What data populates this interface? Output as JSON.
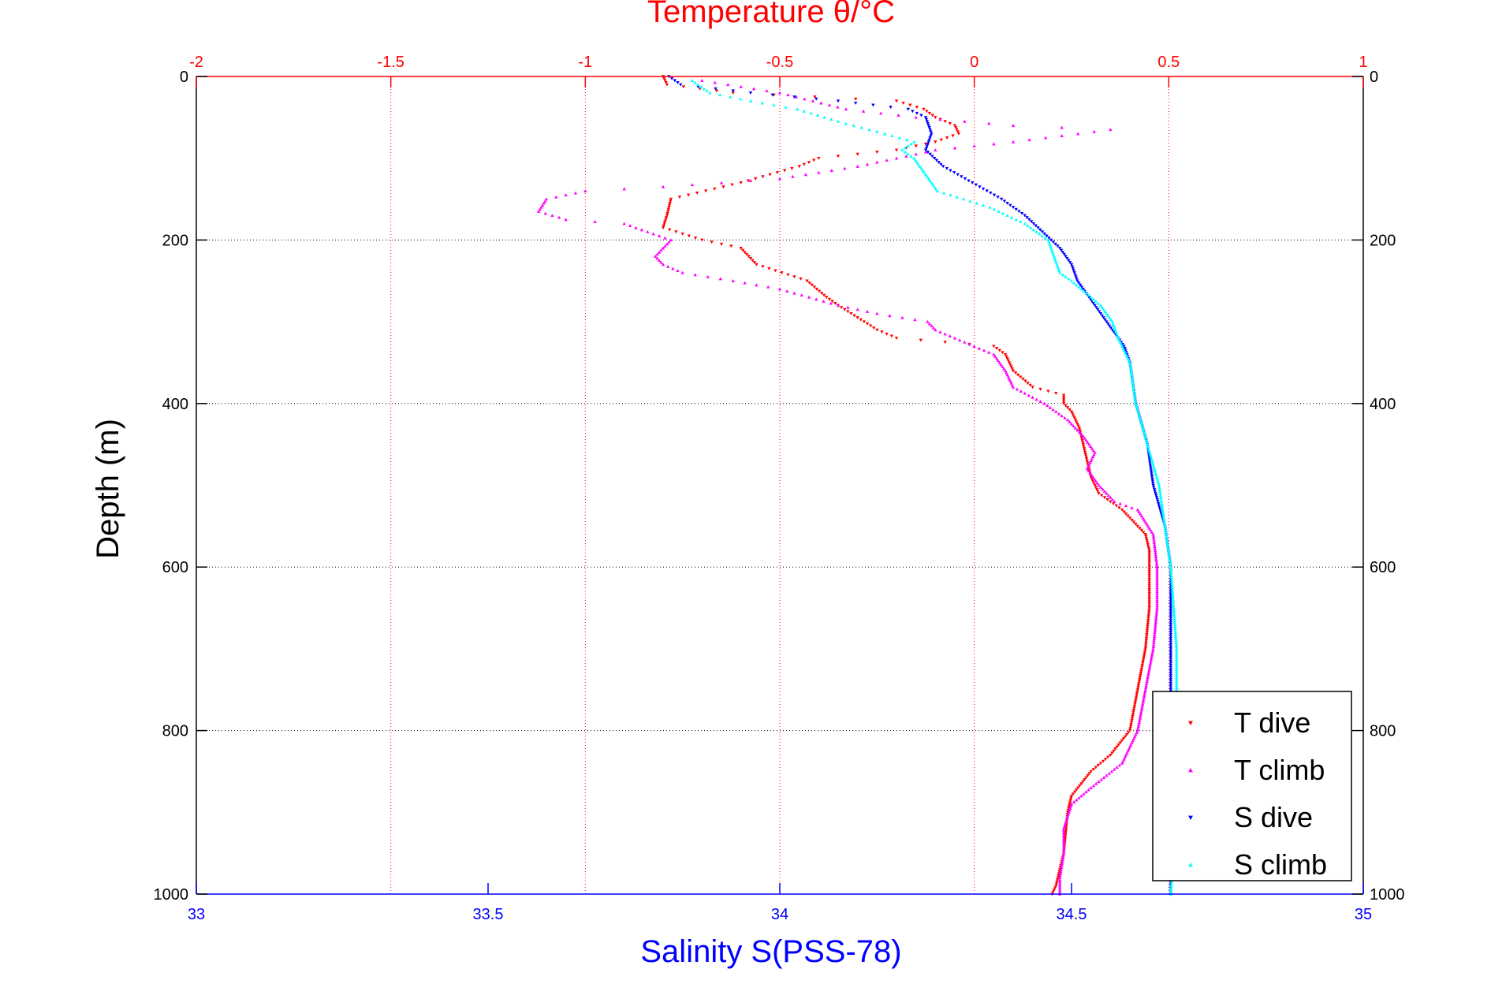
{
  "chart_data": {
    "type": "scatter",
    "title_top": "Temperature θ/°C",
    "xlabel_bottom": "Salinity S(PSS-78)",
    "ylabel": "Depth (m)",
    "x_top": {
      "label": "Temperature θ/°C",
      "lim": [
        -2,
        1
      ],
      "ticks": [
        -2,
        -1.5,
        -1,
        -0.5,
        0,
        0.5,
        1
      ],
      "tick_labels": [
        "-2",
        "-1.5",
        "-1",
        "-0.5",
        "0",
        "0.5",
        "1"
      ],
      "color": "#ff0000"
    },
    "x_bottom": {
      "label": "Salinity S(PSS-78)",
      "lim": [
        33,
        35
      ],
      "ticks": [
        33,
        33.5,
        34,
        34.5,
        35
      ],
      "tick_labels": [
        "33",
        "33.5",
        "34",
        "34.5",
        "35"
      ],
      "color": "#0000ff"
    },
    "y": {
      "label": "Depth (m)",
      "lim": [
        0,
        1000
      ],
      "reversed": true,
      "ticks": [
        0,
        200,
        400,
        600,
        800,
        1000
      ],
      "tick_labels": [
        "0",
        "200",
        "400",
        "600",
        "800",
        "1000"
      ]
    },
    "grid": true,
    "legend_position": "bottom-right",
    "series": [
      {
        "name": "T dive",
        "axis": "top",
        "color": "#ff0000",
        "marker": "triangle-down",
        "points": [
          [
            -0.8,
            0
          ],
          [
            -0.79,
            10
          ],
          [
            -0.62,
            20
          ],
          [
            -0.2,
            30
          ],
          [
            -0.13,
            40
          ],
          [
            -0.1,
            50
          ],
          [
            -0.05,
            60
          ],
          [
            -0.04,
            70
          ],
          [
            -0.1,
            80
          ],
          [
            -0.2,
            90
          ],
          [
            -0.4,
            100
          ],
          [
            -0.45,
            110
          ],
          [
            -0.6,
            130
          ],
          [
            -0.78,
            150
          ],
          [
            -0.79,
            170
          ],
          [
            -0.8,
            185
          ],
          [
            -0.7,
            200
          ],
          [
            -0.6,
            210
          ],
          [
            -0.56,
            230
          ],
          [
            -0.43,
            250
          ],
          [
            -0.38,
            270
          ],
          [
            -0.35,
            280
          ],
          [
            -0.25,
            310
          ],
          [
            -0.2,
            320
          ],
          [
            0.05,
            330
          ],
          [
            0.08,
            340
          ],
          [
            0.1,
            360
          ],
          [
            0.15,
            380
          ],
          [
            0.23,
            390
          ],
          [
            0.23,
            400
          ],
          [
            0.25,
            410
          ],
          [
            0.27,
            430
          ],
          [
            0.28,
            450
          ],
          [
            0.29,
            470
          ],
          [
            0.3,
            490
          ],
          [
            0.32,
            510
          ],
          [
            0.38,
            530
          ],
          [
            0.44,
            560
          ],
          [
            0.45,
            580
          ],
          [
            0.45,
            600
          ],
          [
            0.45,
            650
          ],
          [
            0.44,
            700
          ],
          [
            0.42,
            750
          ],
          [
            0.4,
            800
          ],
          [
            0.35,
            830
          ],
          [
            0.3,
            850
          ],
          [
            0.25,
            880
          ],
          [
            0.24,
            900
          ],
          [
            0.23,
            950
          ],
          [
            0.21,
            990
          ],
          [
            0.2,
            1000
          ]
        ]
      },
      {
        "name": "T climb",
        "axis": "top",
        "color": "#ff00ff",
        "marker": "triangle-up",
        "points": [
          [
            -0.7,
            5
          ],
          [
            -0.5,
            20
          ],
          [
            -0.33,
            40
          ],
          [
            -0.15,
            50
          ],
          [
            0.1,
            60
          ],
          [
            0.35,
            65
          ],
          [
            0.1,
            80
          ],
          [
            -0.1,
            90
          ],
          [
            -0.2,
            100
          ],
          [
            -0.3,
            110
          ],
          [
            -0.5,
            125
          ],
          [
            -0.8,
            135
          ],
          [
            -1.0,
            140
          ],
          [
            -1.1,
            150
          ],
          [
            -1.12,
            165
          ],
          [
            -1.05,
            175
          ],
          [
            -0.9,
            180
          ],
          [
            -0.78,
            200
          ],
          [
            -0.82,
            220
          ],
          [
            -0.8,
            230
          ],
          [
            -0.75,
            240
          ],
          [
            -0.62,
            250
          ],
          [
            -0.5,
            260
          ],
          [
            -0.35,
            280
          ],
          [
            -0.25,
            290
          ],
          [
            -0.12,
            300
          ],
          [
            -0.1,
            310
          ],
          [
            -0.05,
            320
          ],
          [
            0.0,
            330
          ],
          [
            0.05,
            340
          ],
          [
            0.08,
            360
          ],
          [
            0.1,
            380
          ],
          [
            0.18,
            400
          ],
          [
            0.24,
            420
          ],
          [
            0.28,
            440
          ],
          [
            0.31,
            460
          ],
          [
            0.29,
            480
          ],
          [
            0.32,
            500
          ],
          [
            0.36,
            520
          ],
          [
            0.42,
            530
          ],
          [
            0.46,
            560
          ],
          [
            0.47,
            600
          ],
          [
            0.47,
            650
          ],
          [
            0.46,
            700
          ],
          [
            0.44,
            750
          ],
          [
            0.42,
            800
          ],
          [
            0.38,
            840
          ],
          [
            0.3,
            870
          ],
          [
            0.25,
            890
          ],
          [
            0.23,
            920
          ],
          [
            0.23,
            950
          ],
          [
            0.22,
            980
          ],
          [
            0.22,
            1000
          ]
        ]
      },
      {
        "name": "S dive",
        "axis": "bottom",
        "color": "#0000ff",
        "marker": "triangle-down",
        "points": [
          [
            33.81,
            0
          ],
          [
            33.83,
            10
          ],
          [
            33.95,
            20
          ],
          [
            34.1,
            30
          ],
          [
            34.22,
            40
          ],
          [
            34.25,
            50
          ],
          [
            34.26,
            70
          ],
          [
            34.25,
            90
          ],
          [
            34.28,
            110
          ],
          [
            34.33,
            130
          ],
          [
            34.38,
            150
          ],
          [
            34.42,
            170
          ],
          [
            34.45,
            190
          ],
          [
            34.48,
            210
          ],
          [
            34.5,
            230
          ],
          [
            34.51,
            250
          ],
          [
            34.53,
            270
          ],
          [
            34.55,
            290
          ],
          [
            34.57,
            310
          ],
          [
            34.59,
            330
          ],
          [
            34.6,
            350
          ],
          [
            34.61,
            400
          ],
          [
            34.63,
            450
          ],
          [
            34.64,
            500
          ],
          [
            34.66,
            550
          ],
          [
            34.67,
            600
          ],
          [
            34.67,
            700
          ],
          [
            34.67,
            800
          ],
          [
            34.67,
            900
          ],
          [
            34.67,
            1000
          ]
        ]
      },
      {
        "name": "S climb",
        "axis": "bottom",
        "color": "#00ffff",
        "marker": "triangle-up",
        "points": [
          [
            33.85,
            5
          ],
          [
            33.88,
            20
          ],
          [
            33.95,
            30
          ],
          [
            34.03,
            40
          ],
          [
            34.1,
            55
          ],
          [
            34.18,
            70
          ],
          [
            34.23,
            80
          ],
          [
            34.21,
            90
          ],
          [
            34.23,
            100
          ],
          [
            34.25,
            120
          ],
          [
            34.27,
            140
          ],
          [
            34.36,
            160
          ],
          [
            34.42,
            180
          ],
          [
            34.46,
            200
          ],
          [
            34.47,
            220
          ],
          [
            34.48,
            240
          ],
          [
            34.5,
            250
          ],
          [
            34.55,
            280
          ],
          [
            34.57,
            300
          ],
          [
            34.58,
            320
          ],
          [
            34.6,
            350
          ],
          [
            34.61,
            400
          ],
          [
            34.63,
            450
          ],
          [
            34.65,
            500
          ],
          [
            34.66,
            550
          ],
          [
            34.67,
            600
          ],
          [
            34.68,
            700
          ],
          [
            34.68,
            800
          ],
          [
            34.68,
            900
          ],
          [
            34.67,
            1000
          ]
        ]
      }
    ]
  }
}
